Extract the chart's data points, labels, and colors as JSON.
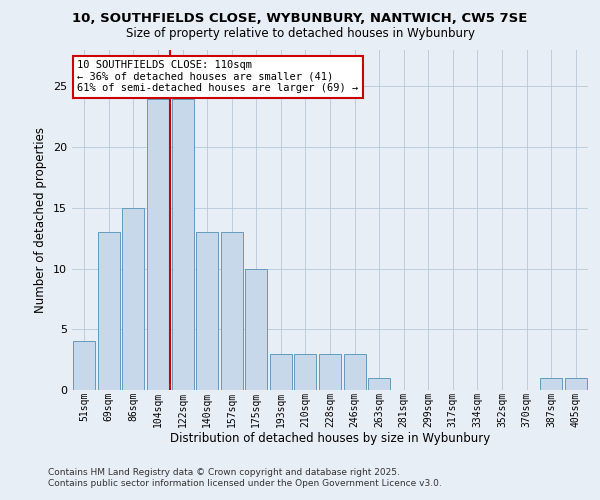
{
  "title1": "10, SOUTHFIELDS CLOSE, WYBUNBURY, NANTWICH, CW5 7SE",
  "title2": "Size of property relative to detached houses in Wybunbury",
  "xlabel": "Distribution of detached houses by size in Wybunbury",
  "ylabel": "Number of detached properties",
  "bar_labels": [
    "51sqm",
    "69sqm",
    "86sqm",
    "104sqm",
    "122sqm",
    "140sqm",
    "157sqm",
    "175sqm",
    "193sqm",
    "210sqm",
    "228sqm",
    "246sqm",
    "263sqm",
    "281sqm",
    "299sqm",
    "317sqm",
    "334sqm",
    "352sqm",
    "370sqm",
    "387sqm",
    "405sqm"
  ],
  "bar_values": [
    4,
    13,
    15,
    24,
    24,
    13,
    13,
    10,
    3,
    3,
    3,
    3,
    1,
    0,
    0,
    0,
    0,
    0,
    0,
    1,
    1
  ],
  "bar_color": "#c8d8eb",
  "bar_edge_color": "#6699bb",
  "grid_color": "#b8c8d8",
  "bg_color": "#e8eef6",
  "vline_x_pos": 3.5,
  "vline_color": "#cc0000",
  "annotation_title": "10 SOUTHFIELDS CLOSE: 110sqm",
  "annotation_line1": "← 36% of detached houses are smaller (41)",
  "annotation_line2": "61% of semi-detached houses are larger (69) →",
  "annotation_box_color": "#ffffff",
  "annotation_box_edge": "#cc0000",
  "footnote1": "Contains HM Land Registry data © Crown copyright and database right 2025.",
  "footnote2": "Contains public sector information licensed under the Open Government Licence v3.0.",
  "ylim": [
    0,
    28
  ],
  "yticks": [
    0,
    5,
    10,
    15,
    20,
    25
  ]
}
